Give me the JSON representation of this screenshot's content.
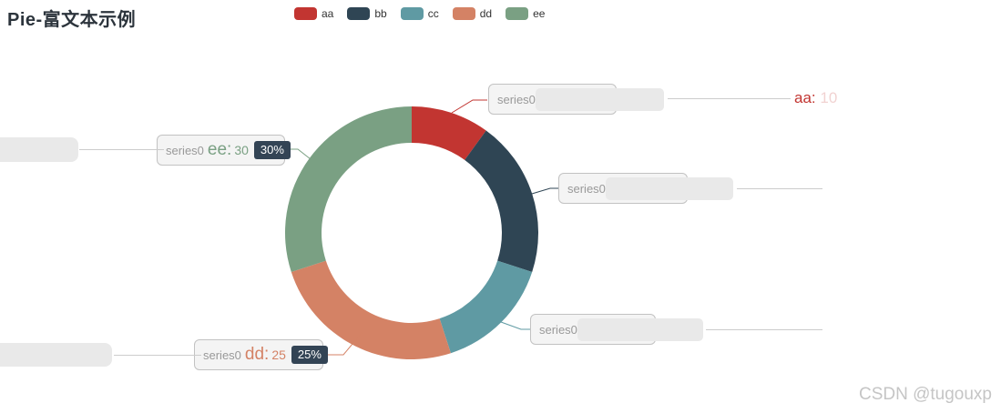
{
  "header": {
    "title": "Pie-富文本示例"
  },
  "legend": {
    "items": [
      {
        "label": "aa",
        "color": "#c23531"
      },
      {
        "label": "bb",
        "color": "#2f4554"
      },
      {
        "label": "cc",
        "color": "#5f9aa3"
      },
      {
        "label": "dd",
        "color": "#d48265"
      },
      {
        "label": "ee",
        "color": "#7aa083"
      }
    ]
  },
  "chart_data": {
    "type": "pie",
    "title": "Pie-富文本示例",
    "donut": true,
    "inner_radius_ratio": 0.71,
    "start_angle": 90,
    "clockwise": true,
    "legend_position": "top",
    "series": [
      {
        "name": "series0",
        "data": [
          {
            "name": "aa",
            "value": 10,
            "percent": "10%",
            "color": "#c23531"
          },
          {
            "name": "bb",
            "value": 20,
            "percent": "20%",
            "color": "#2f4554"
          },
          {
            "name": "cc",
            "value": 15,
            "percent": "15%",
            "color": "#5f9aa3"
          },
          {
            "name": "dd",
            "value": 25,
            "percent": "25%",
            "color": "#d48265"
          },
          {
            "name": "ee",
            "value": 30,
            "percent": "30%",
            "color": "#7aa083"
          }
        ]
      }
    ]
  },
  "callouts": {
    "series_label": "series0",
    "ee": {
      "name_label": "ee:",
      "value": "30",
      "percent": "30%"
    },
    "dd": {
      "name_label": "dd:",
      "value": "25",
      "percent": "25%"
    },
    "aa_edge_label": "aa:",
    "aa_edge_value_faint": "10"
  },
  "colors": {
    "percent_badge_bg": "#334455",
    "percent_badge_text": "#ffffff",
    "callout_box_bg": "#f4f4f4",
    "callout_box_border": "#c2c2c2",
    "series_label_text": "#999999",
    "connector_gray": "#cccccc",
    "redaction_fill": "#e9e9e9",
    "watermark_text": "#c5c5c5"
  },
  "watermark": {
    "text": "CSDN @tugouxp"
  }
}
